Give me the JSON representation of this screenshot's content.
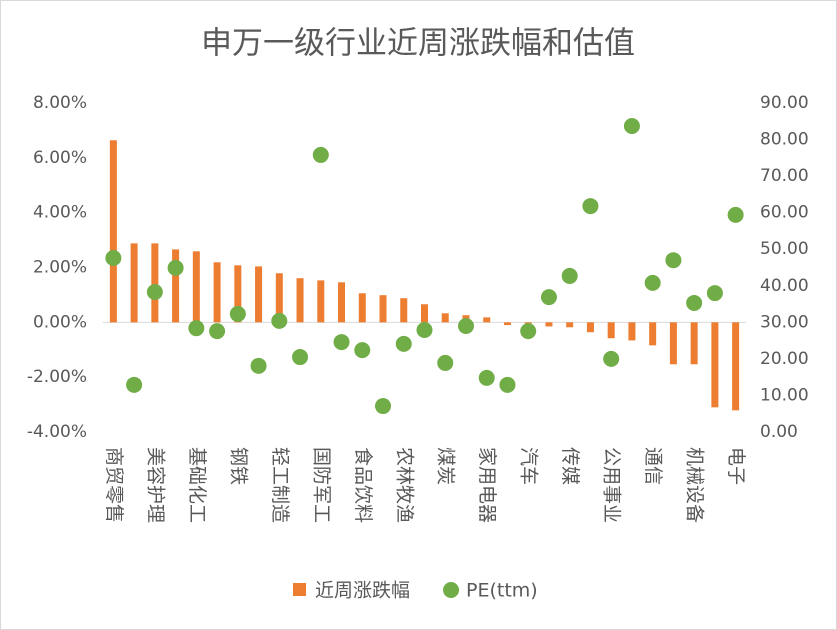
{
  "chart_data": {
    "type": "bar_scatter",
    "title": "申万一级行业近周涨跌幅和估值",
    "categories": [
      "商贸零售",
      null,
      "美容护理",
      null,
      "基础化工",
      null,
      "钢铁",
      null,
      "轻工制造",
      null,
      "国防军工",
      null,
      "食品饮料",
      null,
      "农林牧渔",
      null,
      "煤炭",
      null,
      "家用电器",
      null,
      "汽车",
      null,
      "传媒",
      null,
      "公用事业",
      null,
      "通信",
      null,
      "机械设备",
      null,
      "电子"
    ],
    "series": [
      {
        "name": "近周涨跌幅",
        "color": "#ED7D31",
        "type": "bar",
        "axis": "y",
        "values": [
          6.64,
          2.88,
          2.88,
          2.66,
          2.59,
          2.19,
          2.08,
          2.04,
          1.79,
          1.61,
          1.53,
          1.46,
          1.06,
          0.99,
          0.88,
          0.66,
          0.33,
          0.26,
          0.18,
          -0.1,
          -0.05,
          -0.15,
          -0.18,
          -0.36,
          -0.58,
          -0.66,
          -0.84,
          -1.53,
          -1.53,
          -3.1,
          -3.21
        ]
      },
      {
        "name": "PE(ttm)",
        "color": "#70AD47",
        "type": "scatter",
        "axis": "y2",
        "values": [
          47.6,
          12.9,
          38.3,
          44.9,
          28.4,
          27.6,
          32.3,
          18.1,
          30.4,
          20.5,
          75.8,
          24.6,
          22.4,
          7.1,
          24.1,
          27.9,
          18.9,
          29.0,
          14.8,
          12.9,
          27.6,
          36.9,
          42.7,
          61.8,
          20.0,
          83.7,
          40.8,
          47.0,
          35.3,
          38.0,
          59.4
        ]
      }
    ],
    "ylim": [
      -4,
      8
    ],
    "yticks": [
      {
        "value": -4,
        "label": "-4.00%"
      },
      {
        "value": -2,
        "label": "-2.00%"
      },
      {
        "value": 0,
        "label": "0.00%"
      },
      {
        "value": 2,
        "label": "2.00%"
      },
      {
        "value": 4,
        "label": "4.00%"
      },
      {
        "value": 6,
        "label": "6.00%"
      },
      {
        "value": 8,
        "label": "8.00%"
      }
    ],
    "y2lim": [
      0,
      90
    ],
    "y2ticks": [
      {
        "value": 0,
        "label": "0.00"
      },
      {
        "value": 10,
        "label": "10.00"
      },
      {
        "value": 20,
        "label": "20.00"
      },
      {
        "value": 30,
        "label": "30.00"
      },
      {
        "value": 40,
        "label": "40.00"
      },
      {
        "value": 50,
        "label": "50.00"
      },
      {
        "value": 60,
        "label": "60.00"
      },
      {
        "value": 70,
        "label": "70.00"
      },
      {
        "value": 80,
        "label": "80.00"
      },
      {
        "value": 90,
        "label": "90.00"
      }
    ],
    "legend": "bottom"
  }
}
